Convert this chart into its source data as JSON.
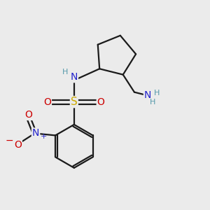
{
  "background_color": "#ebebeb",
  "bond_color": "#1a1a1a",
  "atom_colors": {
    "N": "#2222cc",
    "O": "#cc0000",
    "S": "#ccaa00",
    "C": "#1a1a1a",
    "H": "#5599aa"
  },
  "figsize": [
    3.0,
    3.0
  ],
  "dpi": 100
}
